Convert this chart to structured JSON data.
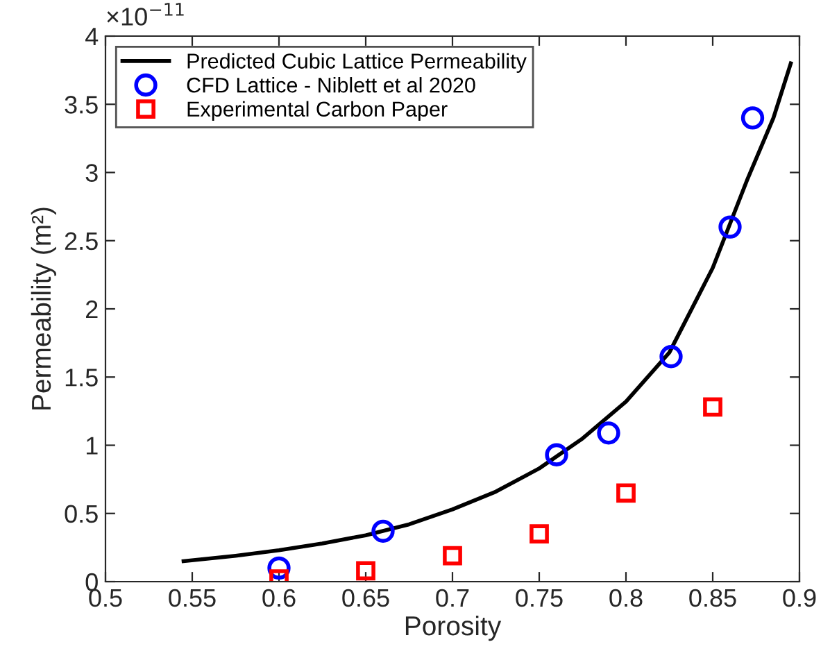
{
  "chart_data": {
    "type": "line",
    "xlabel": "Porosity",
    "ylabel": "Permeability (m²)",
    "annotations": [
      "×10$^{−11}$"
    ],
    "xlim": [
      0.5,
      0.9
    ],
    "xticks": [
      0.5,
      0.55,
      0.6,
      0.65,
      0.7,
      0.75,
      0.8,
      0.85,
      0.9
    ],
    "ylim": [
      0,
      4
    ],
    "yticks": [
      0,
      0.5,
      1,
      1.5,
      2,
      2.5,
      3,
      3.5,
      4
    ],
    "grid": false,
    "legend": "top left",
    "series": [
      {
        "name": "Predicted Cubic Lattice Permeability",
        "color": "#000000",
        "marker": "none",
        "line_style": "solid",
        "x": [
          0.545,
          0.575,
          0.6,
          0.625,
          0.65,
          0.675,
          0.7,
          0.725,
          0.75,
          0.775,
          0.8,
          0.825,
          0.85,
          0.87,
          0.885,
          0.895
        ],
        "values": [
          0.15,
          0.19,
          0.23,
          0.28,
          0.34,
          0.42,
          0.53,
          0.66,
          0.83,
          1.05,
          1.32,
          1.68,
          2.3,
          2.95,
          3.4,
          3.8
        ]
      },
      {
        "name": "CFD Lattice - Niblett et al 2020",
        "type": "scatter",
        "color": "#0000ff",
        "marker": "circle",
        "x": [
          0.6,
          0.66,
          0.76,
          0.79,
          0.826,
          0.86,
          0.873
        ],
        "values": [
          0.1,
          0.37,
          0.93,
          1.09,
          1.65,
          2.6,
          3.4
        ]
      },
      {
        "name": "Experimental Carbon Paper",
        "type": "scatter",
        "color": "#ff0000",
        "marker": "square",
        "x": [
          0.6,
          0.65,
          0.7,
          0.75,
          0.8,
          0.85
        ],
        "values": [
          0.02,
          0.08,
          0.19,
          0.35,
          0.65,
          1.28
        ]
      }
    ]
  }
}
